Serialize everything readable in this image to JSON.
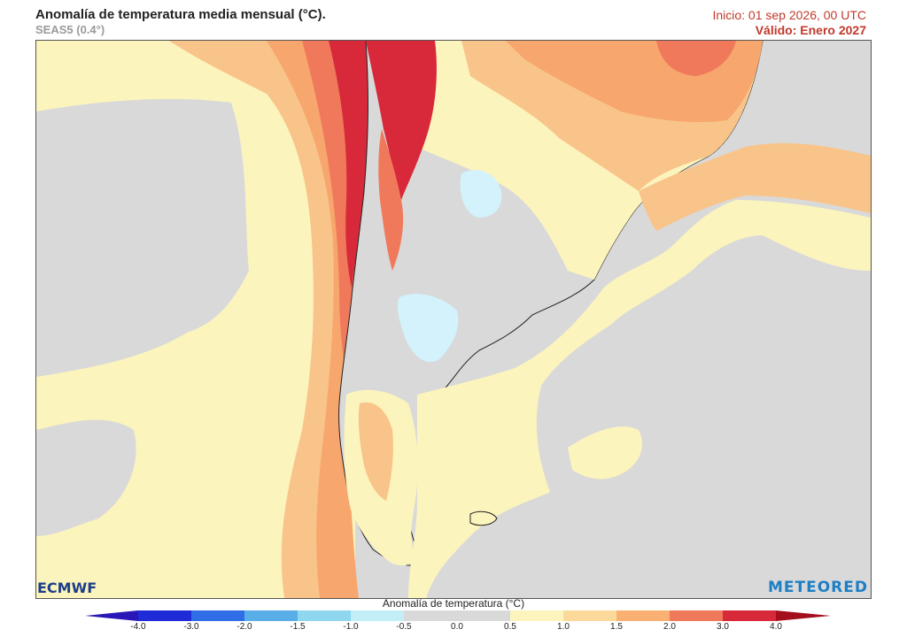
{
  "header": {
    "title": "Anomalía de temperatura media mensual (°C).",
    "subtitle": "SEAS5 (0.4°)",
    "init": "Inicio: 01 sep 2026, 00 UTC",
    "valid": "Válido: Enero 2027"
  },
  "logos": {
    "left": "ECMWF",
    "right": "METEORED"
  },
  "colorbar": {
    "title": "Anomalía de temperatura (°C)",
    "ticks": [
      "-4.0",
      "-3.0",
      "-2.0",
      "-1.5",
      "-1.0",
      "-0.5",
      "0.0",
      "0.5",
      "1.0",
      "1.5",
      "2.0",
      "3.0",
      "4.0"
    ],
    "colors": [
      "#1f2bd6",
      "#2f6ee6",
      "#5aaee8",
      "#8fd6ef",
      "#c3eef7",
      "#d9d9d9",
      "#d9d9d9",
      "#fcf4bd",
      "#fbd99a",
      "#f9b072",
      "#f0795c",
      "#d8293a"
    ],
    "end_low": "#2a17b8",
    "end_high": "#a30f1d"
  },
  "map_colors": {
    "neutral": "#d9d9d9",
    "light_yellow": "#fcf4bd",
    "yellow": "#fbe3a3",
    "light_orange": "#f9c48a",
    "orange": "#f7a66d",
    "red_orange": "#f0795c",
    "red": "#d8293a",
    "light_blue": "#d3f2fb",
    "border": "#222222"
  }
}
